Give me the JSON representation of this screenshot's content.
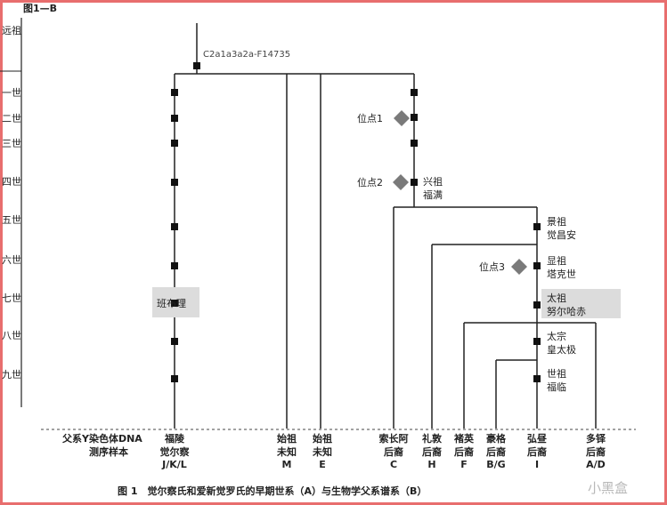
{
  "figure_label": "图1—B",
  "haplogroup": "C2a1a3a2a-F14735",
  "generations": [
    "远祖",
    "一世",
    "二世",
    "三世",
    "四世",
    "五世",
    "六世",
    "七世",
    "八世",
    "九世"
  ],
  "loci": [
    "位点1",
    "位点2",
    "位点3"
  ],
  "ancestors": {
    "xingzu": [
      "兴祖",
      "福满"
    ],
    "jingzu": [
      "景祖",
      "觉昌安"
    ],
    "xianzu": [
      "显祖",
      "塔克世"
    ],
    "taizu": [
      "太祖",
      "努尔哈赤"
    ],
    "taizong": [
      "太宗",
      "皇太极"
    ],
    "shizu": [
      "世祖",
      "福临"
    ],
    "banbuli": "班布理"
  },
  "bottom": {
    "row_label": [
      "父系Y染色体DNA",
      "测序样本"
    ],
    "samples": [
      {
        "lines": [
          "福陵",
          "觉尔察",
          "J/K/L"
        ]
      },
      {
        "lines": [
          "始祖",
          "未知",
          "M"
        ]
      },
      {
        "lines": [
          "始祖",
          "未知",
          "E"
        ]
      },
      {
        "lines": [
          "索长阿",
          "后裔",
          "C"
        ]
      },
      {
        "lines": [
          "礼敦",
          "后裔",
          "H"
        ]
      },
      {
        "lines": [
          "褚英",
          "后裔",
          "F"
        ]
      },
      {
        "lines": [
          "豪格",
          "后裔",
          "B/G"
        ]
      },
      {
        "lines": [
          "弘昼",
          "后裔",
          "I"
        ]
      },
      {
        "lines": [
          "多铎",
          "后裔",
          "A/D"
        ]
      }
    ]
  },
  "caption": "图 1　觉尔察氏和爱新觉罗氏的早期世系（A）与生物学父系谱系（B）",
  "watermark": "小黑盒"
}
